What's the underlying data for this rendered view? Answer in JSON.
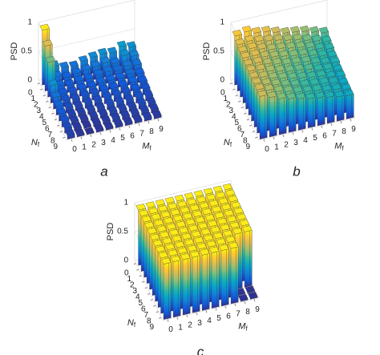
{
  "chart_data": [
    {
      "type": "bar3d",
      "caption": "a",
      "zlabel": "PSD",
      "xlabel": "M",
      "xlabel_sub": "f",
      "ylabel": "N",
      "ylabel_sub": "f",
      "xticks": [
        0,
        1,
        2,
        3,
        4,
        5,
        6,
        7,
        8,
        9
      ],
      "yticks": [
        0,
        1,
        2,
        3,
        4,
        5,
        6,
        7,
        8,
        9
      ],
      "zlim": [
        0,
        1
      ],
      "zticks": [
        0,
        0.5,
        1
      ],
      "grid": true,
      "colormap": [
        "#352a87",
        "#0f5cdd",
        "#1481d6",
        "#06a4ca",
        "#2eb7a4",
        "#87bf77",
        "#d1bb59",
        "#fec832",
        "#f9fb0e"
      ],
      "values": [
        [
          0.95,
          0.28,
          0.22,
          0.2,
          0.25,
          0.28,
          0.3,
          0.28,
          0.35,
          0.3
        ],
        [
          0.78,
          0.2,
          0.15,
          0.18,
          0.2,
          0.22,
          0.25,
          0.2,
          0.3,
          0.25
        ],
        [
          0.6,
          0.15,
          0.12,
          0.15,
          0.15,
          0.18,
          0.2,
          0.18,
          0.22,
          0.2
        ],
        [
          0.3,
          0.12,
          0.1,
          0.12,
          0.12,
          0.15,
          0.15,
          0.15,
          0.18,
          0.15
        ],
        [
          0.2,
          0.1,
          0.08,
          0.1,
          0.1,
          0.12,
          0.12,
          0.12,
          0.15,
          0.12
        ],
        [
          0.15,
          0.08,
          0.06,
          0.08,
          0.08,
          0.1,
          0.1,
          0.1,
          0.12,
          0.1
        ],
        [
          0.12,
          0.06,
          0.05,
          0.06,
          0.06,
          0.08,
          0.08,
          0.08,
          0.1,
          0.08
        ],
        [
          0.1,
          0.05,
          0.04,
          0.05,
          0.05,
          0.06,
          0.06,
          0.06,
          0.08,
          0.06
        ],
        [
          0.08,
          0.04,
          0.03,
          0.04,
          0.04,
          0.05,
          0.05,
          0.05,
          0.06,
          0.05
        ],
        [
          0.06,
          0.03,
          0.02,
          0.03,
          0.03,
          0.04,
          0.04,
          0.04,
          0.05,
          0.04
        ]
      ]
    },
    {
      "type": "bar3d",
      "caption": "b",
      "zlabel": "PSD",
      "xlabel": "M",
      "xlabel_sub": "f",
      "ylabel": "N",
      "ylabel_sub": "f",
      "xticks": [
        0,
        1,
        2,
        3,
        4,
        5,
        6,
        7,
        8,
        9
      ],
      "yticks": [
        0,
        1,
        2,
        3,
        4,
        5,
        6,
        7,
        8,
        9
      ],
      "zlim": [
        0,
        1
      ],
      "zticks": [
        0,
        0.5,
        1
      ],
      "grid": true,
      "colormap": [
        "#352a87",
        "#0f5cdd",
        "#1481d6",
        "#06a4ca",
        "#2eb7a4",
        "#87bf77",
        "#d1bb59",
        "#fec832",
        "#f9fb0e"
      ],
      "values": [
        [
          0.85,
          0.88,
          0.82,
          0.8,
          0.75,
          0.7,
          0.68,
          0.65,
          0.6,
          0.55
        ],
        [
          0.8,
          0.82,
          0.78,
          0.75,
          0.72,
          0.68,
          0.65,
          0.6,
          0.55,
          0.5
        ],
        [
          0.78,
          0.8,
          0.75,
          0.7,
          0.68,
          0.65,
          0.62,
          0.58,
          0.52,
          0.48
        ],
        [
          0.78,
          0.78,
          0.72,
          0.68,
          0.65,
          0.62,
          0.6,
          0.55,
          0.5,
          0.45
        ],
        [
          0.76,
          0.76,
          0.7,
          0.66,
          0.62,
          0.6,
          0.58,
          0.52,
          0.48,
          0.45
        ],
        [
          0.76,
          0.74,
          0.68,
          0.64,
          0.6,
          0.58,
          0.55,
          0.5,
          0.48,
          0.42
        ],
        [
          0.75,
          0.72,
          0.66,
          0.62,
          0.58,
          0.55,
          0.52,
          0.5,
          0.45,
          0.42
        ],
        [
          0.75,
          0.7,
          0.65,
          0.6,
          0.56,
          0.52,
          0.5,
          0.48,
          0.45,
          0.4
        ],
        [
          0.75,
          0.7,
          0.64,
          0.6,
          0.55,
          0.52,
          0.5,
          0.46,
          0.44,
          0.4
        ],
        [
          0.74,
          0.68,
          0.62,
          0.58,
          0.54,
          0.5,
          0.48,
          0.45,
          0.42,
          0.4
        ]
      ]
    },
    {
      "type": "bar3d",
      "caption": "c",
      "zlabel": "PSD",
      "xlabel": "M",
      "xlabel_sub": "f",
      "ylabel": "N",
      "ylabel_sub": "f",
      "xticks": [
        0,
        1,
        2,
        3,
        4,
        5,
        6,
        7,
        8,
        9
      ],
      "yticks": [
        0,
        1,
        2,
        3,
        4,
        5,
        6,
        7,
        8,
        9
      ],
      "zlim": [
        0,
        1
      ],
      "zticks": [
        0,
        0.5,
        1
      ],
      "grid": true,
      "colormap": [
        "#352a87",
        "#0f5cdd",
        "#1481d6",
        "#06a4ca",
        "#2eb7a4",
        "#87bf77",
        "#d1bb59",
        "#fec832",
        "#f9fb0e"
      ],
      "values": [
        [
          0.96,
          0.96,
          0.96,
          0.96,
          0.96,
          0.96,
          0.96,
          0.96,
          0.96,
          0.96
        ],
        [
          0.96,
          0.96,
          0.96,
          0.96,
          0.96,
          0.96,
          0.96,
          0.96,
          0.96,
          0.96
        ],
        [
          0.96,
          0.96,
          0.96,
          0.96,
          0.96,
          0.96,
          0.96,
          0.96,
          0.96,
          0.96
        ],
        [
          0.96,
          0.96,
          0.96,
          0.96,
          0.96,
          0.96,
          0.96,
          0.96,
          0.96,
          0.96
        ],
        [
          0.96,
          0.96,
          0.96,
          0.96,
          0.96,
          0.96,
          0.96,
          0.96,
          0.96,
          0.96
        ],
        [
          0.96,
          0.96,
          0.96,
          0.96,
          0.96,
          0.96,
          0.96,
          0.96,
          0.96,
          0.96
        ],
        [
          0.96,
          0.96,
          0.96,
          0.96,
          0.96,
          0.96,
          0.96,
          0.96,
          0.96,
          0.96
        ],
        [
          0.96,
          0.96,
          0.96,
          0.96,
          0.96,
          0.96,
          0.96,
          0.96,
          0.96,
          0.96
        ],
        [
          0.96,
          0.96,
          0.96,
          0.96,
          0.96,
          0.96,
          0.96,
          0.96,
          0.02,
          0.02
        ],
        [
          0.96,
          0.96,
          0.96,
          0.96,
          0.96,
          0.96,
          0.96,
          0.96,
          0.02,
          0.02
        ]
      ]
    }
  ]
}
